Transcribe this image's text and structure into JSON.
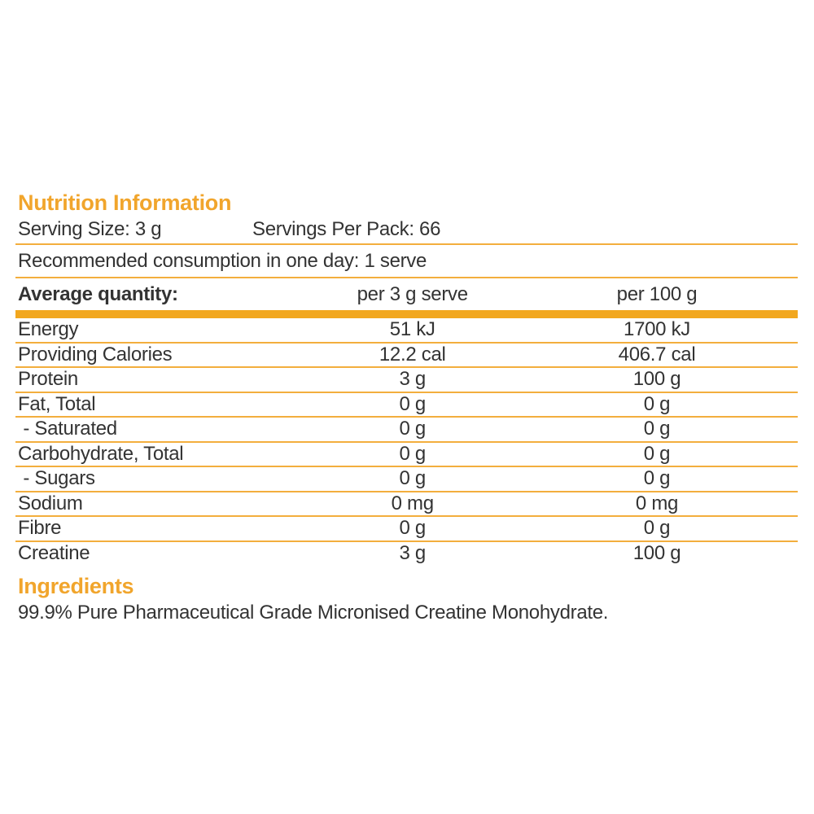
{
  "label": {
    "title": "Nutrition Information",
    "serving_size": "Serving Size: 3 g",
    "servings_per_pack": "Servings Per Pack: 66",
    "recommended": "Recommended consumption in one day: 1 serve"
  },
  "table": {
    "columns": {
      "quantity": "Average quantity:",
      "per_serve": "per 3 g serve",
      "per_100g": "per 100 g"
    },
    "rows": [
      {
        "name": "Energy",
        "per_serve": "51 kJ",
        "per_100g": "1700 kJ"
      },
      {
        "name": "Providing Calories",
        "per_serve": "12.2 cal",
        "per_100g": "406.7 cal"
      },
      {
        "name": "Protein",
        "per_serve": "3 g",
        "per_100g": "100 g"
      },
      {
        "name": "Fat, Total",
        "per_serve": "0 g",
        "per_100g": "0 g"
      },
      {
        "name": " - Saturated",
        "per_serve": "0 g",
        "per_100g": "0 g"
      },
      {
        "name": "Carbohydrate, Total",
        "per_serve": "0 g",
        "per_100g": "0 g"
      },
      {
        "name": " - Sugars",
        "per_serve": "0 g",
        "per_100g": "0 g"
      },
      {
        "name": "Sodium",
        "per_serve": "0 mg",
        "per_100g": "0 mg"
      },
      {
        "name": "Fibre",
        "per_serve": "0 g",
        "per_100g": "0 g"
      },
      {
        "name": "Creatine",
        "per_serve": "3 g",
        "per_100g": "100 g"
      }
    ]
  },
  "ingredients": {
    "title": "Ingredients",
    "text": "99.9% Pure Pharmaceutical Grade Micronised Creatine Monohydrate."
  },
  "colors": {
    "accent": "#F1A52C",
    "bar": "#F2A71E",
    "rule": "#F3AE3D",
    "text": "#333333"
  }
}
